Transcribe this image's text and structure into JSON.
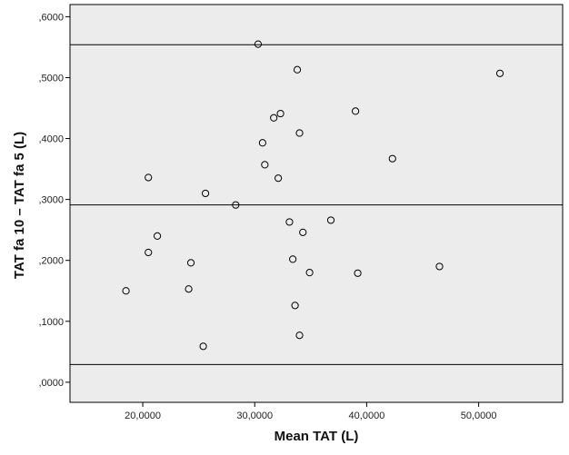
{
  "chart_data": {
    "type": "scatter",
    "xlabel": "Mean TAT (L)",
    "ylabel": "TAT fa 10 – TAT fa 5 (L)",
    "xlim": [
      13.5,
      57.5
    ],
    "ylim": [
      -0.033,
      0.62
    ],
    "x_ticks": [
      20,
      30,
      40,
      50
    ],
    "x_tick_labels": [
      "20,0000",
      "30,0000",
      "40,0000",
      "50,0000"
    ],
    "y_ticks": [
      0.0,
      0.1,
      0.2,
      0.3,
      0.4,
      0.5,
      0.6
    ],
    "y_tick_labels": [
      ",0000",
      ",1000",
      ",2000",
      ",3000",
      ",4000",
      ",5000",
      ",6000"
    ],
    "reference_lines": [
      0.554,
      0.291,
      0.029
    ],
    "background_color": "#ececec",
    "point_color": "#000000",
    "points": [
      {
        "x": 18.5,
        "y": 0.15
      },
      {
        "x": 20.5,
        "y": 0.336
      },
      {
        "x": 20.5,
        "y": 0.213
      },
      {
        "x": 21.3,
        "y": 0.24
      },
      {
        "x": 24.1,
        "y": 0.153
      },
      {
        "x": 24.3,
        "y": 0.196
      },
      {
        "x": 25.4,
        "y": 0.059
      },
      {
        "x": 25.6,
        "y": 0.31
      },
      {
        "x": 28.3,
        "y": 0.291
      },
      {
        "x": 30.3,
        "y": 0.555
      },
      {
        "x": 30.7,
        "y": 0.393
      },
      {
        "x": 30.9,
        "y": 0.357
      },
      {
        "x": 31.7,
        "y": 0.434
      },
      {
        "x": 32.1,
        "y": 0.335
      },
      {
        "x": 32.3,
        "y": 0.441
      },
      {
        "x": 33.1,
        "y": 0.263
      },
      {
        "x": 33.4,
        "y": 0.202
      },
      {
        "x": 33.6,
        "y": 0.126
      },
      {
        "x": 33.8,
        "y": 0.513
      },
      {
        "x": 34.0,
        "y": 0.409
      },
      {
        "x": 34.0,
        "y": 0.077
      },
      {
        "x": 34.3,
        "y": 0.246
      },
      {
        "x": 34.9,
        "y": 0.18
      },
      {
        "x": 36.8,
        "y": 0.266
      },
      {
        "x": 39.0,
        "y": 0.445
      },
      {
        "x": 39.2,
        "y": 0.179
      },
      {
        "x": 42.3,
        "y": 0.367
      },
      {
        "x": 46.5,
        "y": 0.19
      },
      {
        "x": 51.9,
        "y": 0.507
      }
    ]
  }
}
